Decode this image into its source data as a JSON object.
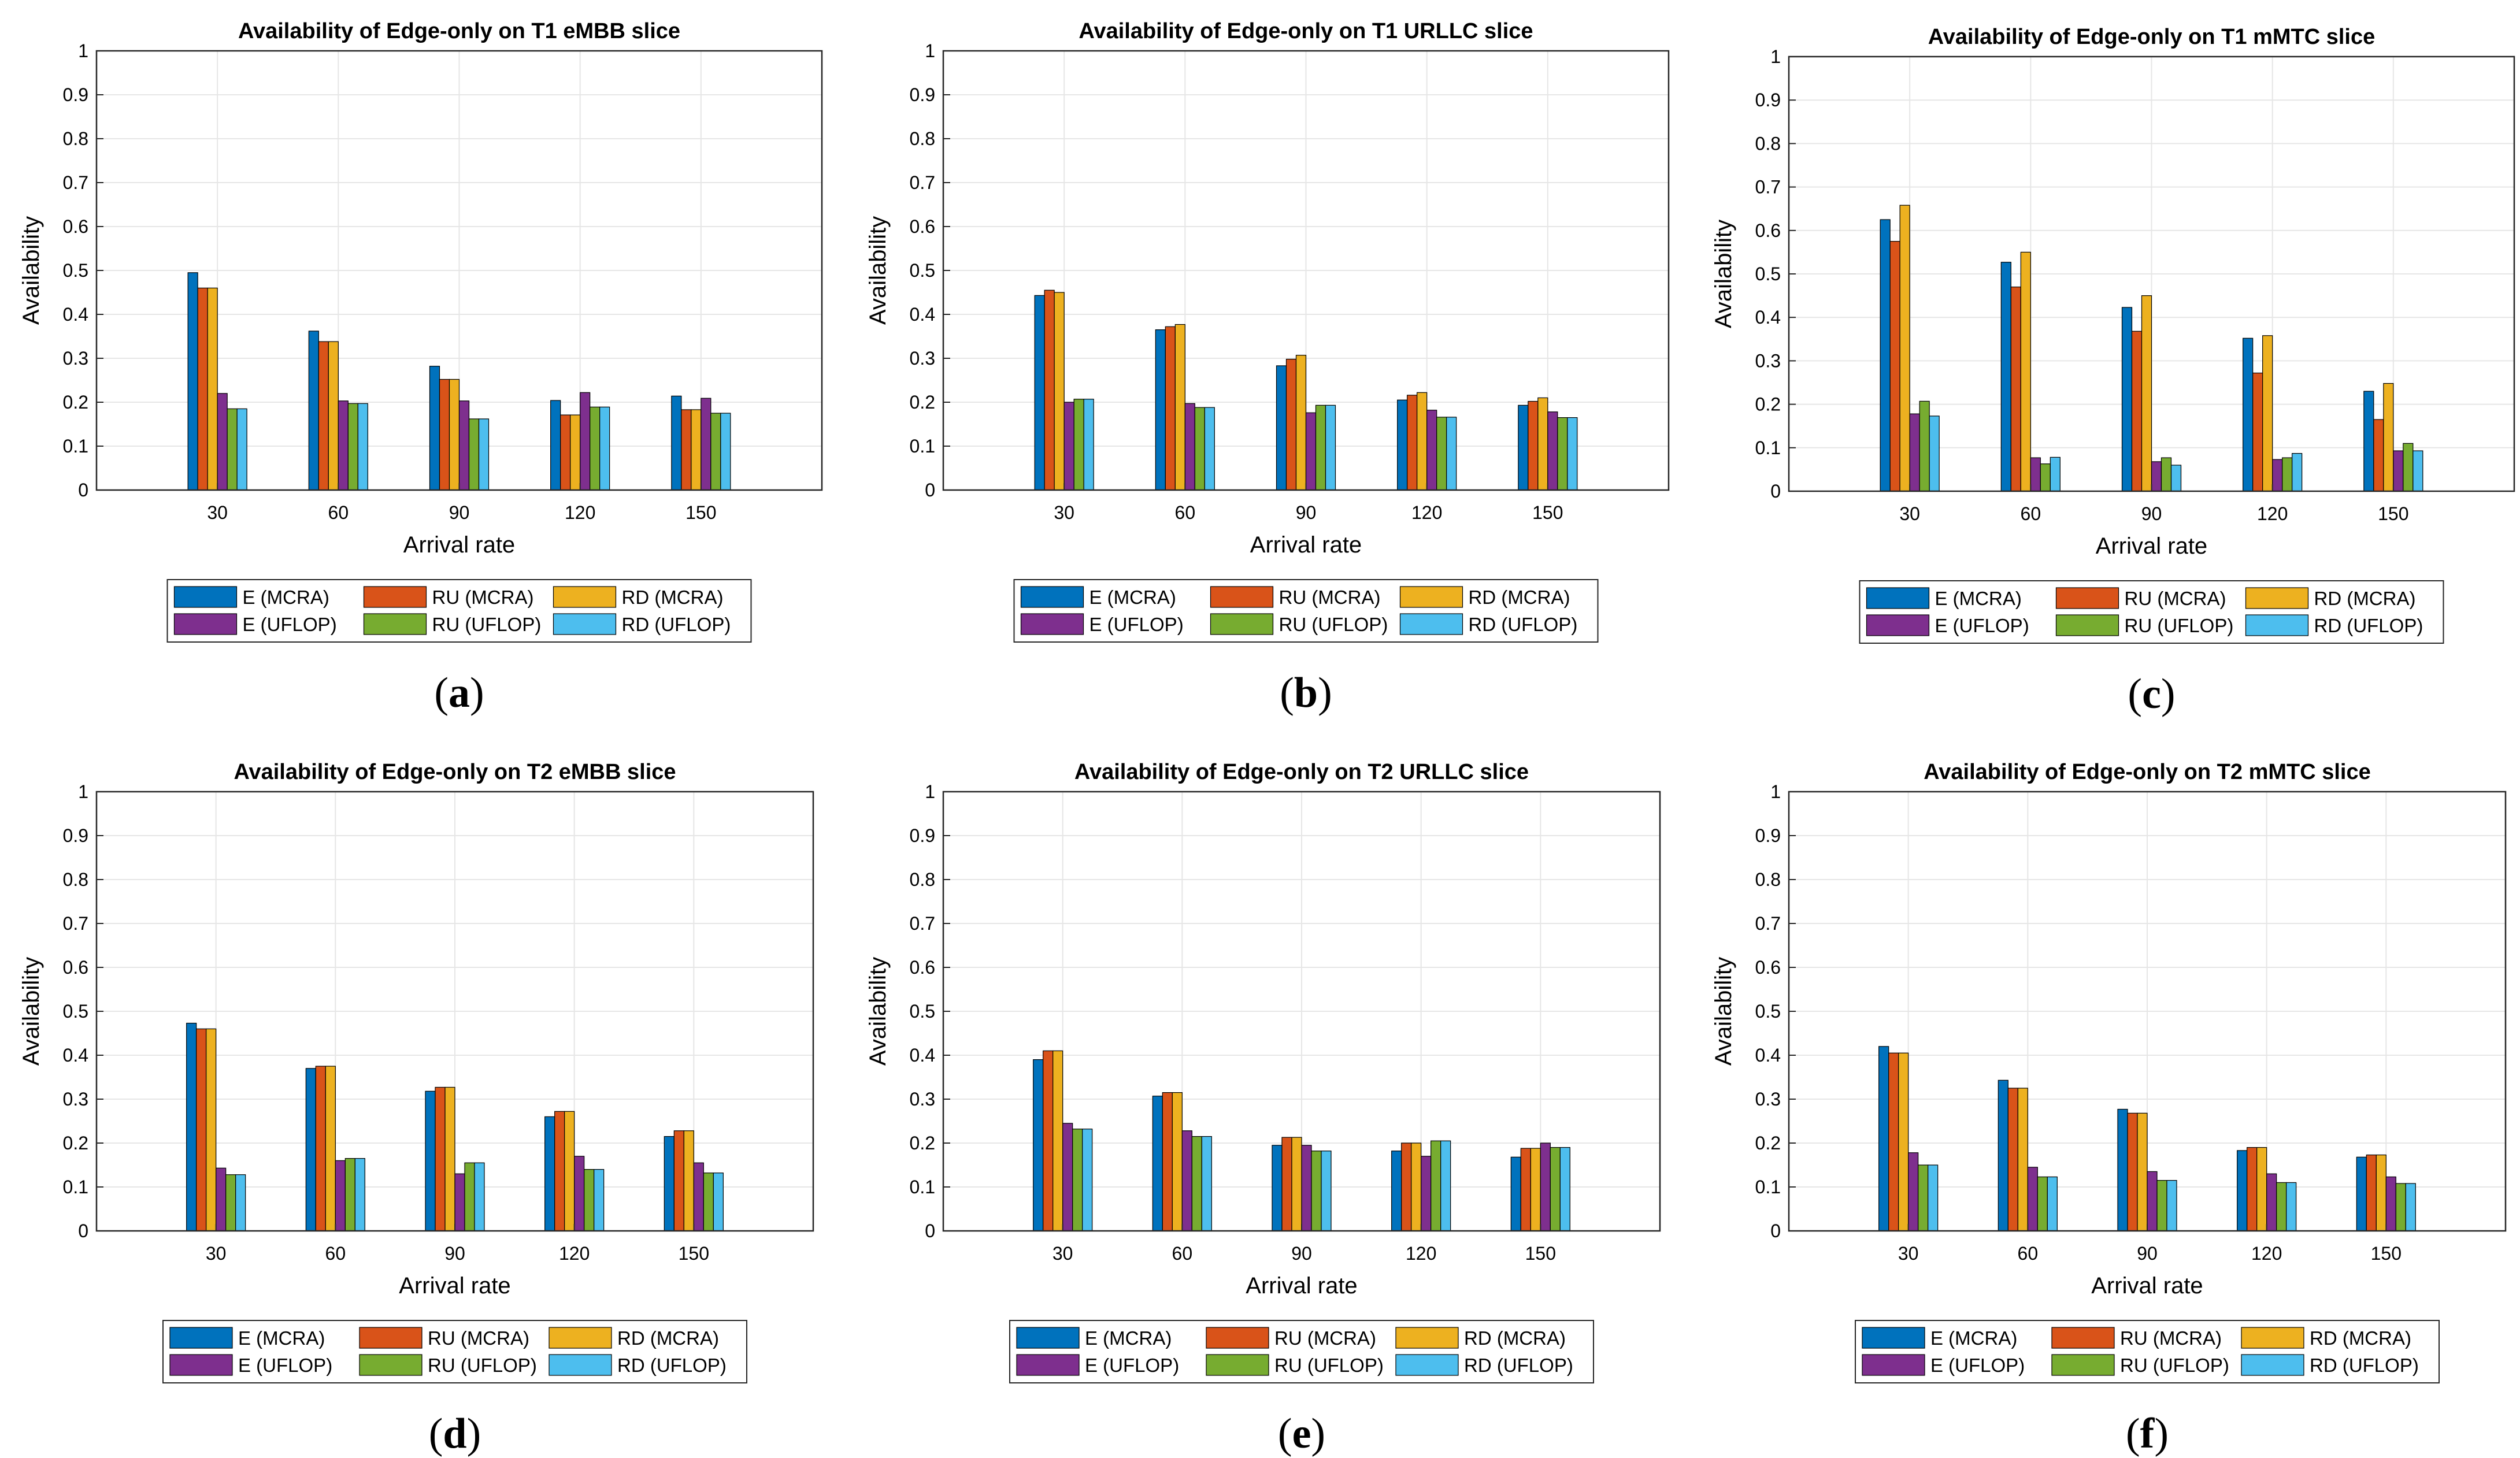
{
  "figure": {
    "caption_letters": [
      "a",
      "b",
      "c",
      "d",
      "e",
      "f"
    ]
  },
  "colors": {
    "E (MCRA)": "#0072BD",
    "RU (MCRA)": "#D95319",
    "RD (MCRA)": "#EDB120",
    "E (UFLOP)": "#7E2F8E",
    "RU (UFLOP)": "#77AC30",
    "RD (UFLOP)": "#4DBEEE"
  },
  "chart_data": [
    {
      "type": "bar",
      "panel": "a",
      "title": "Availability of Edge-only on T1 eMBB slice",
      "xlabel": "Arrival rate",
      "ylabel": "Availability",
      "ylim": [
        0,
        1
      ],
      "yticks": [
        "0",
        "0.1",
        "0.2",
        "0.3",
        "0.4",
        "0.5",
        "0.6",
        "0.7",
        "0.8",
        "0.9",
        "1"
      ],
      "categories": [
        "30",
        "60",
        "90",
        "120",
        "150"
      ],
      "grid": true,
      "legend_position": "below",
      "series": [
        {
          "name": "E (MCRA)",
          "values": [
            0.495,
            0.362,
            0.282,
            0.204,
            0.214
          ]
        },
        {
          "name": "RU (MCRA)",
          "values": [
            0.46,
            0.338,
            0.252,
            0.171,
            0.183
          ]
        },
        {
          "name": "RD (MCRA)",
          "values": [
            0.46,
            0.338,
            0.252,
            0.171,
            0.183
          ]
        },
        {
          "name": "E (UFLOP)",
          "values": [
            0.22,
            0.203,
            0.203,
            0.222,
            0.209
          ]
        },
        {
          "name": "RU (UFLOP)",
          "values": [
            0.185,
            0.197,
            0.162,
            0.189,
            0.175
          ]
        },
        {
          "name": "RD (UFLOP)",
          "values": [
            0.185,
            0.197,
            0.162,
            0.189,
            0.175
          ]
        }
      ]
    },
    {
      "type": "bar",
      "panel": "b",
      "title": "Availability of Edge-only on T1 URLLC slice",
      "xlabel": "Arrival rate",
      "ylabel": "Availability",
      "ylim": [
        0,
        1
      ],
      "yticks": [
        "0",
        "0.1",
        "0.2",
        "0.3",
        "0.4",
        "0.5",
        "0.6",
        "0.7",
        "0.8",
        "0.9",
        "1"
      ],
      "categories": [
        "30",
        "60",
        "90",
        "120",
        "150"
      ],
      "grid": true,
      "legend_position": "below",
      "series": [
        {
          "name": "E (MCRA)",
          "values": [
            0.443,
            0.365,
            0.283,
            0.205,
            0.193
          ]
        },
        {
          "name": "RU (MCRA)",
          "values": [
            0.455,
            0.372,
            0.298,
            0.216,
            0.202
          ]
        },
        {
          "name": "RD (MCRA)",
          "values": [
            0.45,
            0.377,
            0.307,
            0.222,
            0.21
          ]
        },
        {
          "name": "E (UFLOP)",
          "values": [
            0.2,
            0.197,
            0.176,
            0.182,
            0.178
          ]
        },
        {
          "name": "RU (UFLOP)",
          "values": [
            0.207,
            0.188,
            0.193,
            0.166,
            0.165
          ]
        },
        {
          "name": "RD (UFLOP)",
          "values": [
            0.207,
            0.188,
            0.193,
            0.166,
            0.165
          ]
        }
      ]
    },
    {
      "type": "bar",
      "panel": "c",
      "title": "Availability of Edge-only on T1 mMTC slice",
      "xlabel": "Arrival rate",
      "ylabel": "Availability",
      "ylim": [
        0,
        1
      ],
      "yticks": [
        "0",
        "0.1",
        "0.2",
        "0.3",
        "0.4",
        "0.5",
        "0.6",
        "0.7",
        "0.8",
        "0.9",
        "1"
      ],
      "categories": [
        "30",
        "60",
        "90",
        "120",
        "150"
      ],
      "grid": true,
      "legend_position": "below",
      "series": [
        {
          "name": "E (MCRA)",
          "values": [
            0.625,
            0.527,
            0.423,
            0.352,
            0.23
          ]
        },
        {
          "name": "RU (MCRA)",
          "values": [
            0.575,
            0.47,
            0.368,
            0.272,
            0.165
          ]
        },
        {
          "name": "RD (MCRA)",
          "values": [
            0.658,
            0.55,
            0.45,
            0.358,
            0.248
          ]
        },
        {
          "name": "E (UFLOP)",
          "values": [
            0.178,
            0.077,
            0.068,
            0.073,
            0.093
          ]
        },
        {
          "name": "RU (UFLOP)",
          "values": [
            0.207,
            0.063,
            0.077,
            0.077,
            0.11
          ]
        },
        {
          "name": "RD (UFLOP)",
          "values": [
            0.173,
            0.078,
            0.06,
            0.087,
            0.093
          ]
        }
      ]
    },
    {
      "type": "bar",
      "panel": "d",
      "title": "Availability of Edge-only on T2 eMBB slice",
      "xlabel": "Arrival rate",
      "ylabel": "Availability",
      "ylim": [
        0,
        1
      ],
      "yticks": [
        "0",
        "0.1",
        "0.2",
        "0.3",
        "0.4",
        "0.5",
        "0.6",
        "0.7",
        "0.8",
        "0.9",
        "1"
      ],
      "categories": [
        "30",
        "60",
        "90",
        "120",
        "150"
      ],
      "grid": true,
      "legend_position": "below",
      "series": [
        {
          "name": "E (MCRA)",
          "values": [
            0.473,
            0.37,
            0.318,
            0.26,
            0.215
          ]
        },
        {
          "name": "RU (MCRA)",
          "values": [
            0.46,
            0.375,
            0.327,
            0.272,
            0.228
          ]
        },
        {
          "name": "RD (MCRA)",
          "values": [
            0.46,
            0.375,
            0.327,
            0.272,
            0.228
          ]
        },
        {
          "name": "E (UFLOP)",
          "values": [
            0.143,
            0.16,
            0.13,
            0.17,
            0.155
          ]
        },
        {
          "name": "RU (UFLOP)",
          "values": [
            0.128,
            0.165,
            0.155,
            0.14,
            0.132
          ]
        },
        {
          "name": "RD (UFLOP)",
          "values": [
            0.128,
            0.165,
            0.155,
            0.14,
            0.132
          ]
        }
      ]
    },
    {
      "type": "bar",
      "panel": "e",
      "title": "Availability of Edge-only on T2 URLLC slice",
      "xlabel": "Arrival rate",
      "ylabel": "Availability",
      "ylim": [
        0,
        1
      ],
      "yticks": [
        "0",
        "0.1",
        "0.2",
        "0.3",
        "0.4",
        "0.5",
        "0.6",
        "0.7",
        "0.8",
        "0.9",
        "1"
      ],
      "categories": [
        "30",
        "60",
        "90",
        "120",
        "150"
      ],
      "grid": true,
      "legend_position": "below",
      "series": [
        {
          "name": "E (MCRA)",
          "values": [
            0.39,
            0.307,
            0.195,
            0.182,
            0.168
          ]
        },
        {
          "name": "RU (MCRA)",
          "values": [
            0.41,
            0.315,
            0.213,
            0.2,
            0.188
          ]
        },
        {
          "name": "RD (MCRA)",
          "values": [
            0.41,
            0.315,
            0.213,
            0.2,
            0.188
          ]
        },
        {
          "name": "E (UFLOP)",
          "values": [
            0.245,
            0.228,
            0.195,
            0.17,
            0.2
          ]
        },
        {
          "name": "RU (UFLOP)",
          "values": [
            0.232,
            0.215,
            0.182,
            0.205,
            0.19
          ]
        },
        {
          "name": "RD (UFLOP)",
          "values": [
            0.232,
            0.215,
            0.182,
            0.205,
            0.19
          ]
        }
      ]
    },
    {
      "type": "bar",
      "panel": "f",
      "title": "Availability of Edge-only on T2 mMTC slice",
      "xlabel": "Arrival rate",
      "ylabel": "Availability",
      "ylim": [
        0,
        1
      ],
      "yticks": [
        "0",
        "0.1",
        "0.2",
        "0.3",
        "0.4",
        "0.5",
        "0.6",
        "0.7",
        "0.8",
        "0.9",
        "1"
      ],
      "categories": [
        "30",
        "60",
        "90",
        "120",
        "150"
      ],
      "grid": true,
      "legend_position": "below",
      "series": [
        {
          "name": "E (MCRA)",
          "values": [
            0.42,
            0.343,
            0.277,
            0.183,
            0.168
          ]
        },
        {
          "name": "RU (MCRA)",
          "values": [
            0.405,
            0.325,
            0.268,
            0.19,
            0.173
          ]
        },
        {
          "name": "RD (MCRA)",
          "values": [
            0.405,
            0.325,
            0.268,
            0.19,
            0.173
          ]
        },
        {
          "name": "E (UFLOP)",
          "values": [
            0.178,
            0.145,
            0.135,
            0.13,
            0.123
          ]
        },
        {
          "name": "RU (UFLOP)",
          "values": [
            0.15,
            0.123,
            0.115,
            0.11,
            0.108
          ]
        },
        {
          "name": "RD (UFLOP)",
          "values": [
            0.15,
            0.123,
            0.115,
            0.11,
            0.108
          ]
        }
      ]
    }
  ]
}
